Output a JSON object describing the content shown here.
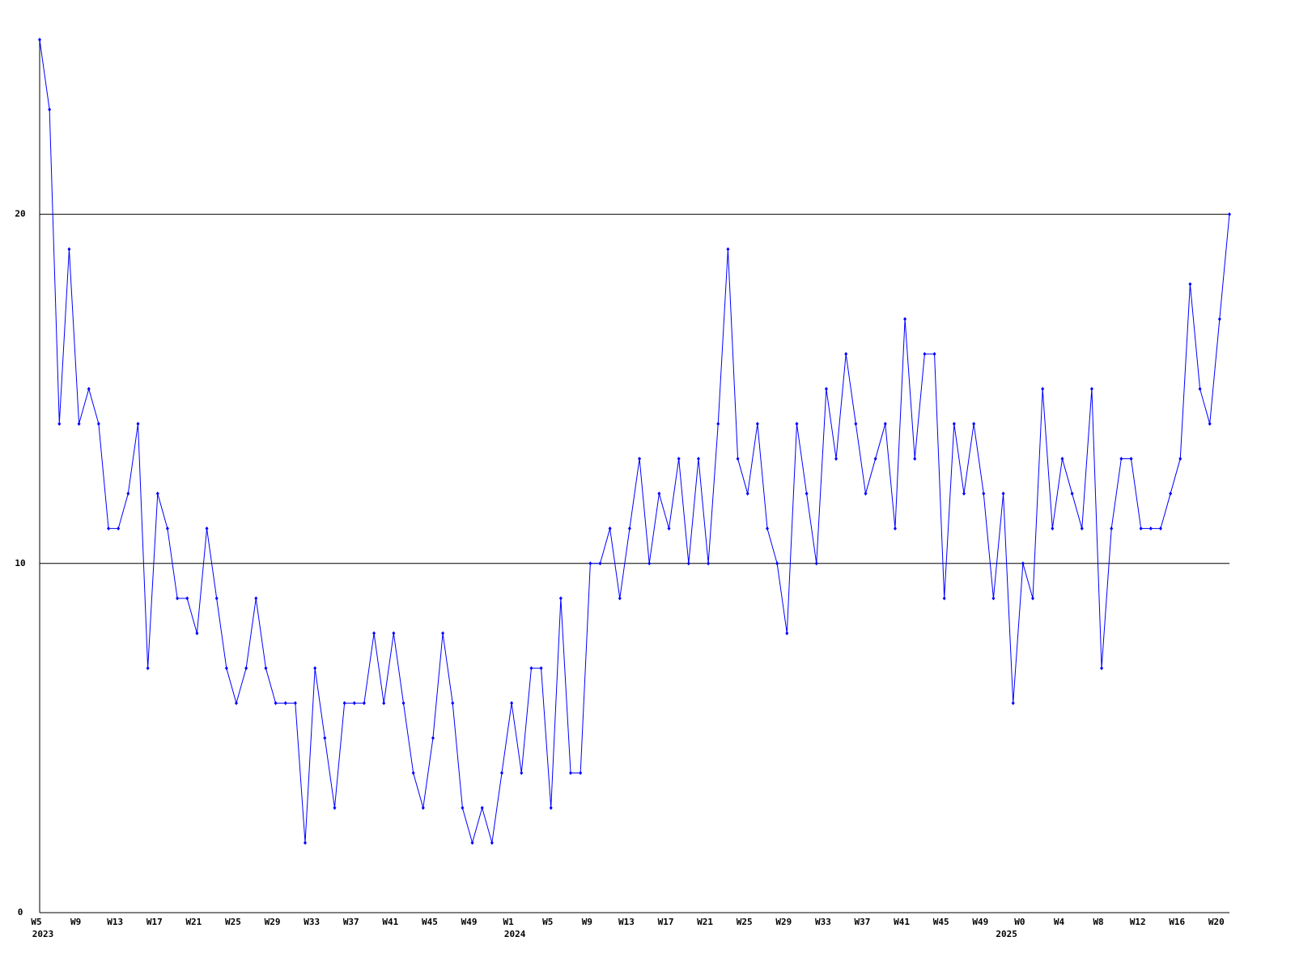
{
  "chart_data": {
    "type": "line",
    "categories": [
      "W5",
      null,
      null,
      null,
      "W9",
      null,
      null,
      null,
      "W13",
      null,
      null,
      null,
      "W17",
      null,
      null,
      null,
      "W21",
      null,
      null,
      null,
      "W25",
      null,
      null,
      null,
      "W29",
      null,
      null,
      null,
      "W33",
      null,
      null,
      null,
      "W37",
      null,
      null,
      null,
      "W41",
      null,
      null,
      null,
      "W45",
      null,
      null,
      null,
      "W49",
      null,
      null,
      null,
      "W1",
      null,
      null,
      null,
      "W5",
      null,
      null,
      null,
      "W9",
      null,
      null,
      null,
      "W13",
      null,
      null,
      null,
      "W17",
      null,
      null,
      null,
      "W21",
      null,
      null,
      null,
      "W25",
      null,
      null,
      null,
      "W29",
      null,
      null,
      null,
      "W33",
      null,
      null,
      null,
      "W37",
      null,
      null,
      null,
      "W41",
      null,
      null,
      null,
      "W45",
      null,
      null,
      null,
      "W49",
      null,
      null,
      null,
      "W0",
      null,
      null,
      null,
      "W4",
      null,
      null,
      null,
      "W8",
      null,
      null,
      null,
      "W12",
      null,
      null,
      null,
      "W16",
      null,
      null,
      null,
      "W20",
      null
    ],
    "category_years": [
      "2023",
      null,
      null,
      null,
      null,
      null,
      null,
      null,
      null,
      null,
      null,
      null,
      null,
      null,
      null,
      null,
      null,
      null,
      null,
      null,
      null,
      null,
      null,
      null,
      null,
      null,
      null,
      null,
      null,
      null,
      null,
      null,
      null,
      null,
      null,
      null,
      null,
      null,
      null,
      null,
      null,
      null,
      null,
      null,
      null,
      null,
      null,
      null,
      "2024",
      null,
      null,
      null,
      null,
      null,
      null,
      null,
      null,
      null,
      null,
      null,
      null,
      null,
      null,
      null,
      null,
      null,
      null,
      null,
      null,
      null,
      null,
      null,
      null,
      null,
      null,
      null,
      null,
      null,
      null,
      null,
      null,
      null,
      null,
      null,
      null,
      null,
      null,
      null,
      null,
      null,
      null,
      null,
      null,
      null,
      null,
      null,
      null,
      null,
      "2025",
      null,
      null,
      null,
      null,
      null,
      null,
      null,
      null,
      null,
      null,
      null,
      null,
      null,
      null,
      null,
      null,
      null,
      null,
      null,
      null,
      null
    ],
    "values": [
      25,
      23,
      14,
      19,
      14,
      15,
      14,
      11,
      11,
      12,
      14,
      7,
      12,
      11,
      9,
      9,
      8,
      11,
      9,
      7,
      6,
      7,
      9,
      7,
      6,
      6,
      6,
      2,
      7,
      5,
      3,
      6,
      6,
      6,
      8,
      6,
      8,
      6,
      4,
      3,
      5,
      8,
      6,
      3,
      2,
      3,
      2,
      4,
      6,
      4,
      7,
      7,
      3,
      9,
      4,
      4,
      10,
      10,
      11,
      9,
      11,
      13,
      10,
      12,
      11,
      13,
      10,
      13,
      10,
      14,
      19,
      13,
      12,
      14,
      11,
      10,
      8,
      14,
      12,
      10,
      15,
      13,
      16,
      14,
      12,
      13,
      14,
      11,
      17,
      13,
      16,
      16,
      9,
      14,
      12,
      14,
      12,
      9,
      12,
      6,
      10,
      9,
      15,
      11,
      13,
      12,
      11,
      15,
      7,
      11,
      13,
      13,
      11,
      11,
      11,
      12,
      13,
      18,
      15,
      14,
      17,
      20
    ],
    "color": "#0000ff",
    "ylim": [
      0,
      25
    ],
    "yticks": [
      0,
      10,
      20
    ],
    "grid": true
  }
}
